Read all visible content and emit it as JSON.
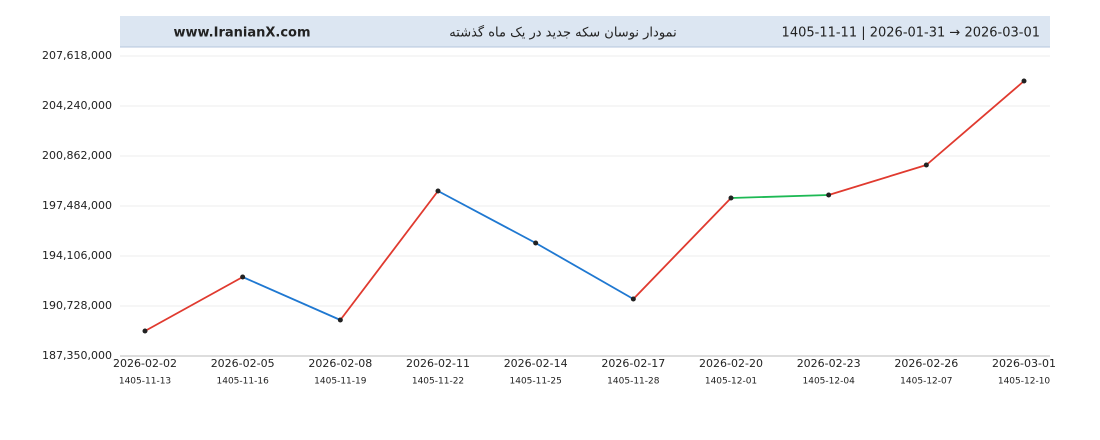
{
  "chart_data": {
    "type": "line",
    "site": "www.IranianX.com",
    "title": "نمودار نوسان سکه جدید در یک ماه گذشته",
    "range": "1405-11-11  |  2026-01-31  →  2026-03-01",
    "categories": [
      "2026-02-02",
      "2026-02-05",
      "2026-02-08",
      "2026-02-11",
      "2026-02-14",
      "2026-02-17",
      "2026-02-20",
      "2026-02-23",
      "2026-02-26",
      "2026-03-01"
    ],
    "categories_secondary": [
      "1405-11-13",
      "1405-11-16",
      "1405-11-19",
      "1405-11-22",
      "1405-11-25",
      "1405-11-28",
      "1405-12-01",
      "1405-12-04",
      "1405-12-07",
      "1405-12-10"
    ],
    "values": [
      189039000,
      192687000,
      189782000,
      198497000,
      194984000,
      191201000,
      198024000,
      198227000,
      200254000,
      205929000
    ],
    "segment_colors": [
      "#e03a2f",
      "#1f78d1",
      "#e03a2f",
      "#1f78d1",
      "#1f78d1",
      "#e03a2f",
      "#1db954",
      "#e03a2f",
      "#e03a2f"
    ],
    "point_color": "#222222",
    "ylim": [
      187350000,
      207618000
    ],
    "yticks": [
      {
        "value": 187350000,
        "label": "187,350,000"
      },
      {
        "value": 190728000,
        "label": "190,728,000"
      },
      {
        "value": 194106000,
        "label": "194,106,000"
      },
      {
        "value": 197484000,
        "label": "197,484,000"
      },
      {
        "value": 200862000,
        "label": "200,862,000"
      },
      {
        "value": 204240000,
        "label": "204,240,000"
      },
      {
        "value": 207618000,
        "label": "207,618,000"
      }
    ],
    "grid": true
  }
}
